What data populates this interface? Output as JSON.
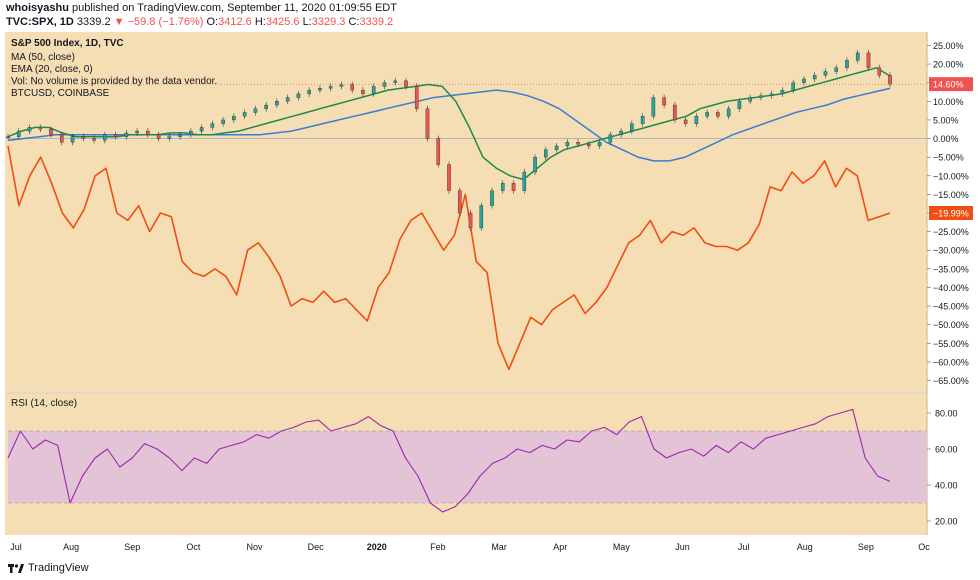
{
  "header": {
    "author": "whoisyashu",
    "published": "published on TradingView.com, September 11, 2020 01:09:55 EDT",
    "symbol": "TVC:SPX, 1D",
    "last": "3339.2",
    "arrow": "▼",
    "change": "−59.8 (−1.76%)",
    "o_label": "O:",
    "o_value": "3412.6",
    "h_label": "H:",
    "h_value": "3425.6",
    "l_label": "L:",
    "l_value": "3329.3",
    "c_label": "C:",
    "c_value": "3339.2"
  },
  "legend": {
    "title": "S&P 500 Index, 1D, TVC",
    "ma": "MA (50, close)",
    "ema": "EMA (20, close, 0)",
    "vol": "Vol: No volume is provided by the data vendor.",
    "btc": "BTCUSD, COINBASE"
  },
  "rsi_label": "RSI (14, close)",
  "footer": {
    "brand": "TradingView"
  },
  "colors": {
    "bg": "#f5deb3",
    "up": "#26a69a",
    "down": "#ef5350",
    "ma": "#3a7bd5",
    "ema": "#1e8a4c",
    "btc": "#f04e12",
    "rsi": "#9c27b0",
    "rsi_band": "#e3c4d6"
  },
  "chart_data": {
    "type": "line",
    "x_ticks": [
      "Jul",
      "Aug",
      "Sep",
      "Oct",
      "Nov",
      "Dec",
      "2020",
      "Feb",
      "Mar",
      "Apr",
      "May",
      "Jun",
      "Jul",
      "Aug",
      "Sep",
      "Oc"
    ],
    "y_ticks": [
      "25.00%",
      "20.00%",
      "15.00%",
      "10.00%",
      "5.00%",
      "0.00%",
      "−5.00%",
      "−10.00%",
      "−15.00%",
      "−20.00%",
      "−25.00%",
      "−30.00%",
      "−35.00%",
      "−40.00%",
      "−45.00%",
      "−50.00%",
      "−55.00%",
      "−60.00%",
      "−65.00%"
    ],
    "ylim": [
      -67,
      27
    ],
    "last_value_labels": {
      "spx": "14.60%",
      "btc": "−19.99%"
    },
    "series": [
      {
        "name": "TVC:SPX",
        "values": [
          0.5,
          2,
          3,
          2.5,
          1,
          -1,
          0.5,
          0,
          -0.5,
          1,
          0.5,
          1.5,
          2,
          1,
          0,
          0.5,
          1,
          2,
          3,
          4,
          5,
          6,
          7,
          8,
          9,
          10,
          11,
          12,
          13,
          13.5,
          14,
          14.5,
          13,
          12,
          14,
          15,
          15.5,
          14,
          8,
          0,
          -7,
          -14,
          -20,
          -24,
          -18,
          -14,
          -12,
          -14,
          -9,
          -5,
          -3,
          -2,
          -1,
          -1.5,
          -2,
          -1,
          1,
          2,
          4,
          6,
          11,
          9,
          5,
          4,
          6,
          7,
          6,
          8,
          10,
          11,
          11.5,
          12,
          13,
          15,
          16,
          17,
          18,
          19,
          21,
          23,
          19,
          17,
          14.6
        ]
      },
      {
        "name": "MA (50, close)",
        "values": [
          -0.5,
          0,
          0.5,
          1,
          1,
          1,
          1,
          1,
          1,
          1,
          1,
          1,
          1,
          1,
          1,
          1,
          1,
          1.5,
          2,
          3,
          4,
          5,
          6,
          7,
          8,
          9,
          10,
          11,
          11.5,
          12,
          12.5,
          13,
          12.5,
          11.5,
          10,
          8,
          5,
          2,
          -1,
          -3,
          -5,
          -6,
          -6,
          -5,
          -3,
          -1,
          1,
          2.5,
          4,
          5.5,
          7,
          8,
          9,
          10.5,
          11.5,
          12.5,
          13.5
        ]
      },
      {
        "name": "EMA (20, close, 0)",
        "values": [
          0.5,
          2,
          3,
          3,
          1.5,
          0.5,
          0.5,
          0.5,
          0.5,
          1,
          1,
          1,
          1.5,
          1.5,
          1,
          1,
          1.5,
          2,
          3,
          4,
          5,
          6,
          7,
          8,
          9,
          10,
          11,
          12,
          13,
          13.5,
          14,
          14.5,
          14,
          10,
          3,
          -5,
          -8,
          -10,
          -11,
          -8,
          -5,
          -3,
          -2,
          -1,
          0,
          1,
          2,
          3,
          4,
          5,
          6,
          8,
          9,
          10,
          10.5,
          11,
          11.5,
          12,
          13,
          14,
          15,
          16,
          17,
          18,
          19,
          16.8
        ]
      },
      {
        "name": "BTCUSD, COINBASE",
        "values": [
          -2,
          -18,
          -10,
          -5,
          -12,
          -20,
          -24,
          -19,
          -10,
          -8,
          -20,
          -22,
          -18,
          -25,
          -20,
          -21,
          -33,
          -36,
          -37,
          -35,
          -37,
          -42,
          -30,
          -28,
          -32,
          -37,
          -45,
          -43,
          -44,
          -41,
          -44,
          -43,
          -46,
          -49,
          -40,
          -36,
          -27,
          -22,
          -20,
          -25,
          -30,
          -26,
          -15,
          -33,
          -36,
          -55,
          -62,
          -55,
          -48,
          -50,
          -46,
          -44,
          -42,
          -47,
          -44,
          -40,
          -34,
          -28,
          -26,
          -22,
          -28,
          -25,
          -26,
          -24,
          -28,
          -29,
          -29,
          -30,
          -28,
          -23,
          -13,
          -14,
          -9,
          -12,
          -10,
          -6,
          -13,
          -8,
          -10,
          -22,
          -21,
          -20
        ]
      },
      {
        "name": "RSI (14, close)",
        "values": [
          55,
          70,
          60,
          65,
          62,
          30,
          45,
          55,
          60,
          50,
          55,
          63,
          60,
          55,
          48,
          55,
          52,
          60,
          62,
          64,
          68,
          66,
          70,
          72,
          75,
          76,
          70,
          72,
          74,
          78,
          73,
          70,
          55,
          45,
          30,
          25,
          28,
          35,
          45,
          52,
          55,
          60,
          58,
          62,
          60,
          65,
          64,
          70,
          72,
          68,
          75,
          78,
          60,
          55,
          58,
          60,
          56,
          62,
          58,
          64,
          60,
          66,
          68,
          70,
          72,
          74,
          78,
          80,
          82,
          55,
          45,
          42
        ]
      }
    ],
    "rsi_ticks": [
      "80.00",
      "60.00",
      "40.00",
      "20.00"
    ],
    "rsi_ylim": [
      15,
      85
    ],
    "rsi_band": [
      30,
      70
    ]
  }
}
